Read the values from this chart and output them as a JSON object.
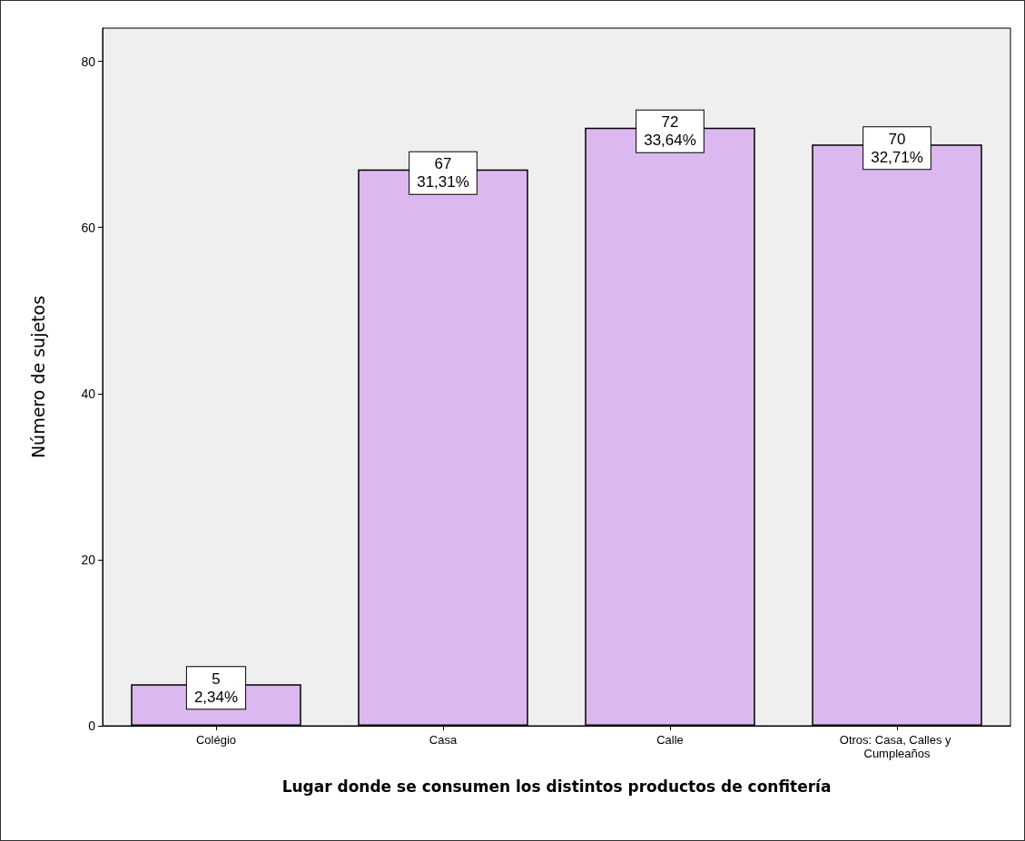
{
  "chart_data": {
    "type": "bar",
    "xlabel": "Lugar donde se consumen los distintos productos de confitería",
    "ylabel": "Número de sujetos",
    "categories": [
      "Colégio",
      "Casa",
      "Calle",
      "Otros: Casa, Calles y Cumpleaños"
    ],
    "values": [
      5,
      67,
      72,
      70
    ],
    "color": "#dcb8f0",
    "value_labels": [
      "5\n2,34%",
      "67\n31,31%",
      "72\n33,64%",
      "70\n32,71%"
    ],
    "ylim": [
      0,
      84
    ],
    "yticks": [
      0,
      20,
      40,
      60,
      80
    ],
    "grid": false
  }
}
